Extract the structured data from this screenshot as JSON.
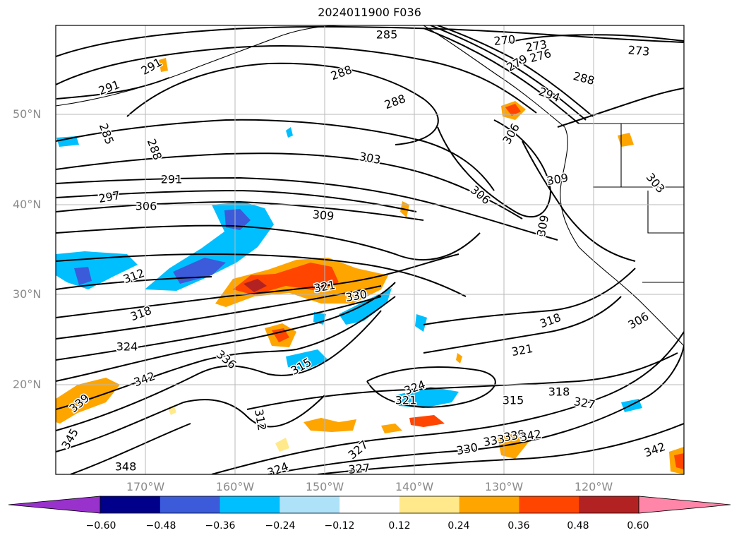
{
  "title": "2024011900 F036",
  "lat_labels": [
    "50°N",
    "40°N",
    "30°N",
    "20°N"
  ],
  "lon_labels": [
    "170°W",
    "160°W",
    "150°W",
    "140°W",
    "130°W",
    "120°W"
  ],
  "colorbar": {
    "ticks": [
      "−0.60",
      "−0.48",
      "−0.36",
      "−0.24",
      "−0.12",
      "0.12",
      "0.24",
      "0.36",
      "0.48",
      "0.60"
    ],
    "colors": [
      "#9932cc",
      "#00008b",
      "#3b5bdb",
      "#00bfff",
      "#aee2f9",
      "#ffffff",
      "#ffe98a",
      "#ffa500",
      "#ff4500",
      "#b22222",
      "#ff86a8"
    ]
  },
  "contour_labels": [
    "285",
    "270",
    "273",
    "276",
    "279",
    "273",
    "291",
    "291",
    "288",
    "288",
    "288",
    "294",
    "285",
    "288",
    "303",
    "306",
    "291",
    "306",
    "297",
    "306",
    "309",
    "309",
    "309",
    "312",
    "321",
    "330",
    "318",
    "318",
    "306",
    "324",
    "321",
    "336",
    "342",
    "315",
    "324",
    "321",
    "315",
    "318",
    "327",
    "339",
    "312",
    "345",
    "327",
    "327",
    "339",
    "330",
    "342",
    "333",
    "342",
    "348",
    "324",
    "303"
  ],
  "colors": {
    "contour": "#000000",
    "coast": "#000000",
    "grid": "#b8b8b8"
  }
}
